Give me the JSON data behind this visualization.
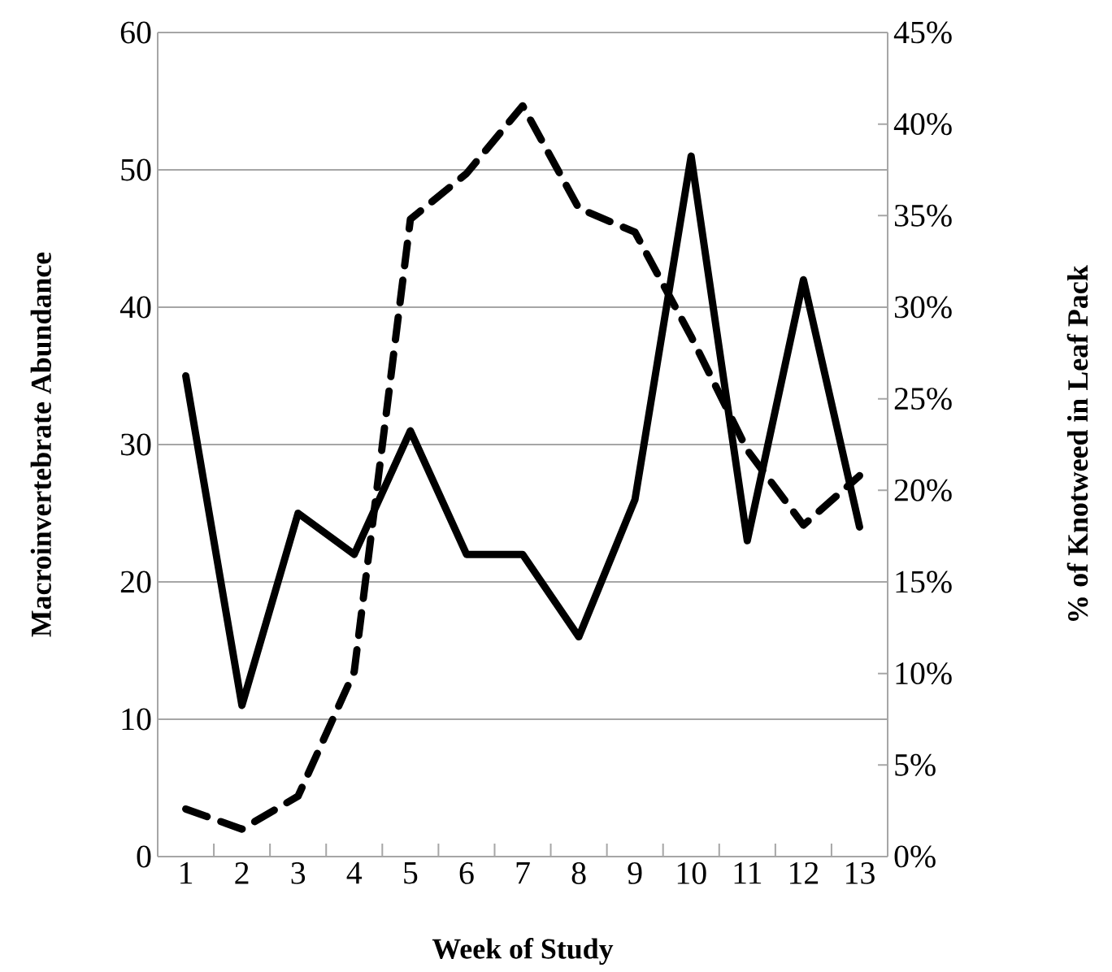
{
  "chart_data": {
    "type": "line",
    "xlabel": "Week of Study",
    "ylabel": "Macroinvertebrate Abundance",
    "y2label": "% of Knotweed in Leaf Pack",
    "categories": [
      "1",
      "2",
      "3",
      "4",
      "5",
      "6",
      "7",
      "8",
      "9",
      "10",
      "11",
      "12",
      "13"
    ],
    "series": [
      {
        "color": "#000000",
        "line_style": "solid",
        "values": [
          35,
          11,
          25,
          22,
          31,
          22,
          22,
          16,
          26,
          51,
          23,
          42,
          24
        ]
      },
      {
        "color": "#000000",
        "line_style": "dashed",
        "axis": "y2",
        "values": [
          2.6,
          1.5,
          3.3,
          10.1,
          34.8,
          37.3,
          41,
          35.4,
          34.1,
          28.4,
          22.2,
          18.1,
          20.8
        ]
      }
    ],
    "ylim": [
      0,
      60
    ],
    "yticks": [
      0,
      10,
      20,
      30,
      40,
      50,
      60
    ],
    "y2lim": [
      0,
      45
    ],
    "y2ticks": [
      {
        "value": 0,
        "label": "0%"
      },
      {
        "value": 5,
        "label": "5%"
      },
      {
        "value": 10,
        "label": "10%"
      },
      {
        "value": 15,
        "label": "15%"
      },
      {
        "value": 20,
        "label": "20%"
      },
      {
        "value": 25,
        "label": "25%"
      },
      {
        "value": 30,
        "label": "30%"
      },
      {
        "value": 35,
        "label": "35%"
      },
      {
        "value": 40,
        "label": "40%"
      },
      {
        "value": 45,
        "label": "45%"
      }
    ],
    "grid": "y",
    "marker": "none"
  }
}
